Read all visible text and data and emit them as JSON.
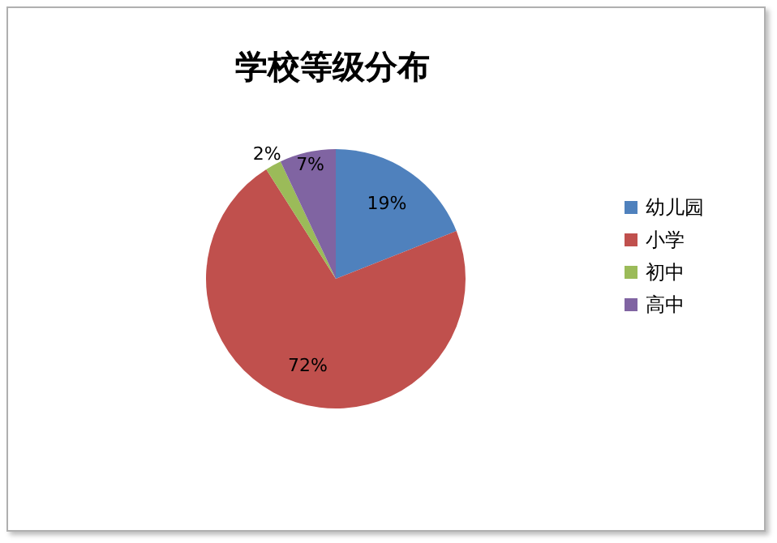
{
  "chart_data": {
    "type": "pie",
    "title": "学校等级分布",
    "categories": [
      "幼儿园",
      "小学",
      "初中",
      "高中"
    ],
    "values": [
      19,
      72,
      2,
      7
    ],
    "colors": [
      "#4f81bd",
      "#c0504d",
      "#9bbb59",
      "#8064a2"
    ],
    "value_labels": [
      "19%",
      "72%",
      "2%",
      "7%"
    ],
    "legend": "right"
  }
}
